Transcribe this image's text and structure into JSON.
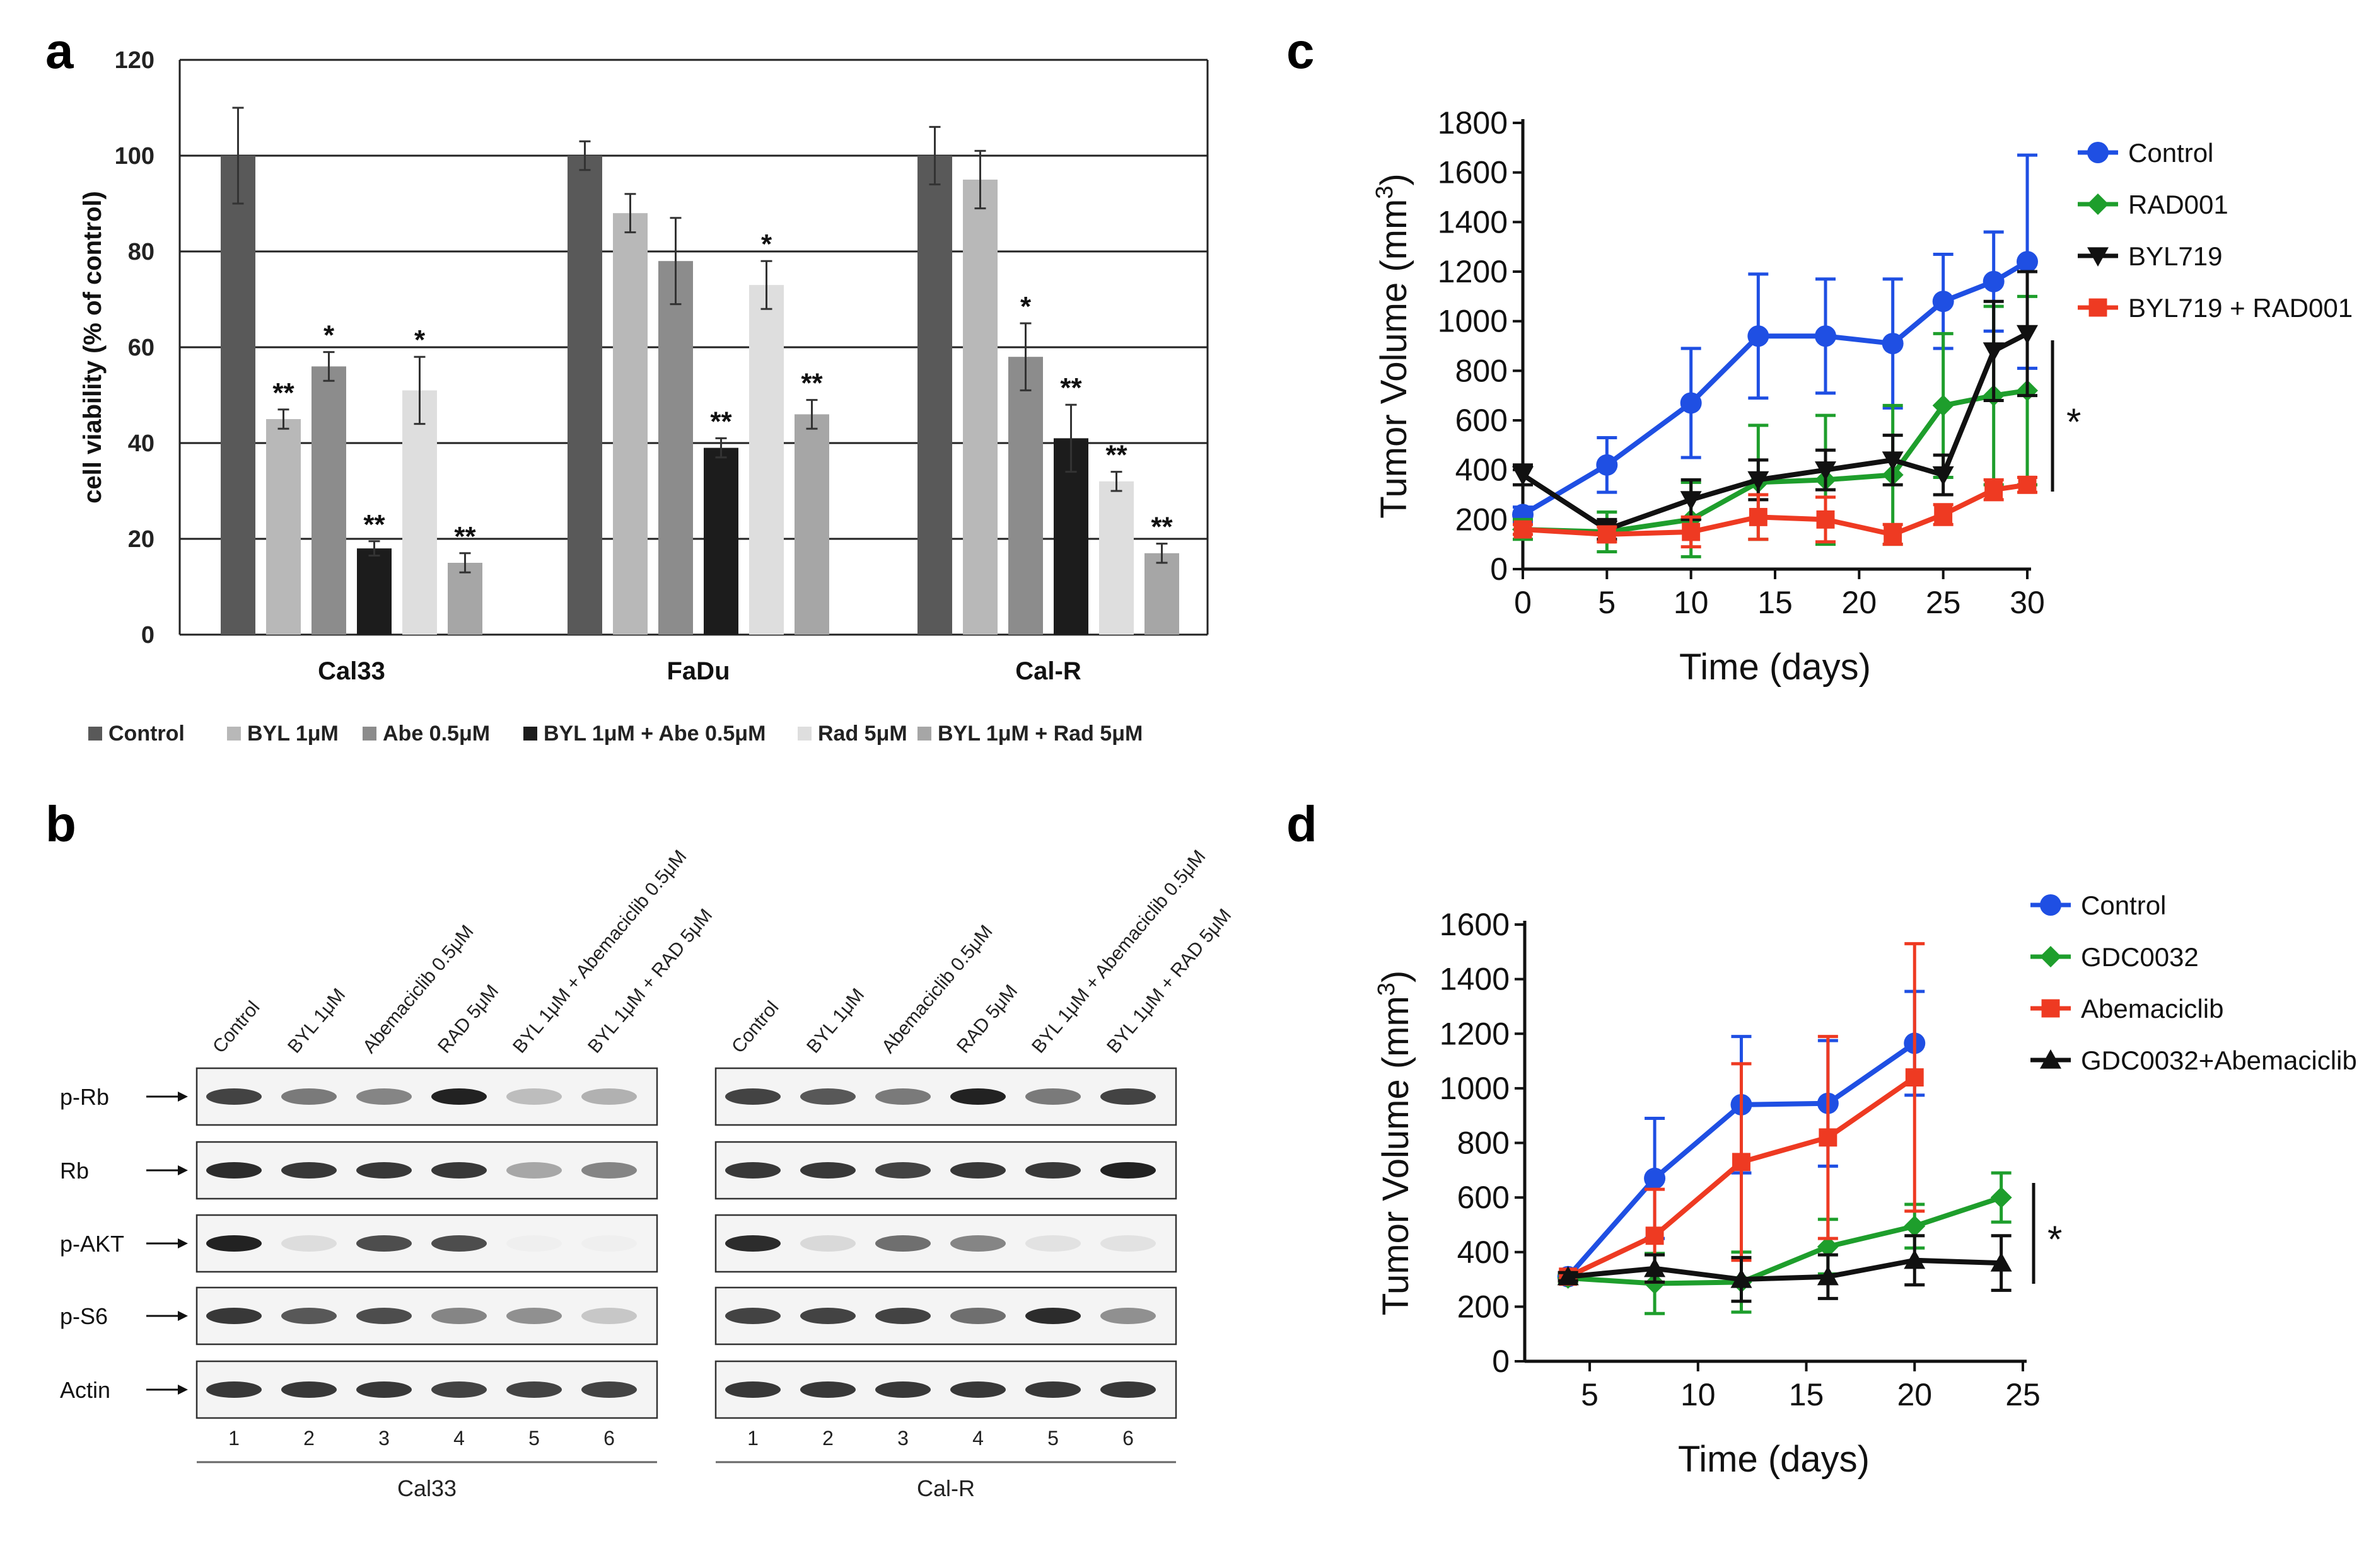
{
  "colors": {
    "control": "#595959",
    "byl": "#b8b8b8",
    "abe": "#8c8c8c",
    "byl_abe": "#1c1c1c",
    "rad": "#dedede",
    "byl_rad": "#a6a6a6",
    "line_blue": "#1f4fe3",
    "line_green": "#1e9e2c",
    "line_black": "#111111",
    "line_red": "#ee3a22"
  },
  "panel_labels": {
    "a": "a",
    "b": "b",
    "c": "c",
    "d": "d"
  },
  "chart_data": [
    {
      "id": "a",
      "type": "bar",
      "title": "",
      "ylabel": "cell viability (% of control)",
      "xlabel": "",
      "ylim": [
        0,
        120
      ],
      "yticks": [
        0,
        20,
        40,
        60,
        80,
        100,
        120
      ],
      "categories": [
        "Cal33",
        "FaDu",
        "Cal-R"
      ],
      "series": [
        {
          "name": "Control",
          "color_key": "control",
          "values": [
            100,
            100,
            100
          ],
          "errors": [
            10,
            3,
            6
          ],
          "stars": [
            "",
            "",
            ""
          ]
        },
        {
          "name": "BYL 1μM",
          "color_key": "byl",
          "values": [
            45,
            88,
            95
          ],
          "errors": [
            2,
            4,
            6
          ],
          "stars": [
            "**",
            "",
            ""
          ]
        },
        {
          "name": "Abe 0.5μM",
          "color_key": "abe",
          "values": [
            56,
            78,
            58
          ],
          "errors": [
            3,
            9,
            7
          ],
          "stars": [
            "*",
            "",
            "*"
          ]
        },
        {
          "name": "BYL 1μM + Abe 0.5μM",
          "color_key": "byl_abe",
          "values": [
            18,
            39,
            41
          ],
          "errors": [
            1.5,
            2,
            7
          ],
          "stars": [
            "**",
            "**",
            "**"
          ]
        },
        {
          "name": "Rad 5μM",
          "color_key": "rad",
          "values": [
            51,
            73,
            32
          ],
          "errors": [
            7,
            5,
            2
          ],
          "stars": [
            "*",
            "*",
            "**"
          ]
        },
        {
          "name": "BYL 1μM + Rad 5μM",
          "color_key": "byl_rad",
          "values": [
            15,
            46,
            17
          ],
          "errors": [
            2,
            3,
            2
          ],
          "stars": [
            "**",
            "**",
            "**"
          ]
        }
      ],
      "grid": true,
      "legend": "bottom"
    },
    {
      "id": "c",
      "type": "line",
      "title": "",
      "xlabel": "Time (days)",
      "ylabel_main": "Tumor Volume (mm",
      "ylabel_sup": "3",
      "ylabel_end": ")",
      "xlim": [
        0,
        30
      ],
      "xticks": [
        0,
        5,
        10,
        15,
        20,
        25,
        30
      ],
      "ylim": [
        0,
        1800
      ],
      "yticks": [
        0,
        200,
        400,
        600,
        800,
        1000,
        1200,
        1400,
        1600,
        1800
      ],
      "series": [
        {
          "name": "Control",
          "marker": "circle",
          "color_key": "line_blue",
          "x": [
            0,
            5,
            10,
            14,
            18,
            22,
            25,
            28,
            30
          ],
          "y": [
            220,
            420,
            670,
            940,
            940,
            910,
            1080,
            1160,
            1240
          ],
          "err": [
            30,
            110,
            220,
            250,
            230,
            260,
            190,
            200,
            430
          ]
        },
        {
          "name": "RAD001",
          "marker": "diamond",
          "color_key": "line_green",
          "x": [
            0,
            5,
            10,
            14,
            18,
            22,
            25,
            28,
            30
          ],
          "y": [
            160,
            150,
            200,
            350,
            360,
            380,
            660,
            700,
            720
          ],
          "err": [
            40,
            80,
            150,
            230,
            260,
            280,
            290,
            360,
            380
          ]
        },
        {
          "name": "BYL719",
          "marker": "triangle-down",
          "color_key": "line_black",
          "x": [
            0,
            5,
            10,
            14,
            18,
            22,
            25,
            28,
            30
          ],
          "y": [
            380,
            160,
            280,
            360,
            400,
            440,
            380,
            880,
            950
          ],
          "err": [
            40,
            40,
            80,
            80,
            80,
            100,
            80,
            200,
            250
          ]
        },
        {
          "name": "BYL719 + RAD001",
          "marker": "square",
          "color_key": "line_red",
          "x": [
            0,
            5,
            10,
            14,
            18,
            22,
            25,
            28,
            30
          ],
          "y": [
            160,
            140,
            150,
            210,
            200,
            140,
            220,
            320,
            340
          ],
          "err": [
            20,
            30,
            60,
            90,
            90,
            40,
            40,
            40,
            30
          ]
        }
      ],
      "significance": "*",
      "legend": "top-right"
    },
    {
      "id": "d",
      "type": "line",
      "title": "",
      "xlabel": "Time (days)",
      "ylabel_main": "Tumor Volume (mm",
      "ylabel_sup": "3",
      "ylabel_end": ")",
      "xlim": [
        2,
        25
      ],
      "xticks": [
        5,
        10,
        15,
        20,
        25
      ],
      "ylim": [
        0,
        1600
      ],
      "yticks": [
        0,
        200,
        400,
        600,
        800,
        1000,
        1200,
        1400,
        1600
      ],
      "series": [
        {
          "name": "Control",
          "marker": "circle",
          "color_key": "line_blue",
          "x": [
            4,
            8,
            12,
            16,
            20
          ],
          "y": [
            310,
            670,
            940,
            945,
            1165
          ],
          "err": [
            15,
            220,
            250,
            230,
            190
          ]
        },
        {
          "name": "GDC0032",
          "marker": "diamond",
          "color_key": "line_green",
          "x": [
            4,
            8,
            12,
            16,
            20,
            24
          ],
          "y": [
            305,
            285,
            290,
            420,
            495,
            600
          ],
          "err": [
            15,
            110,
            110,
            100,
            80,
            90
          ]
        },
        {
          "name": "Abemaciclib",
          "marker": "square",
          "color_key": "line_red",
          "x": [
            4,
            8,
            12,
            16,
            20
          ],
          "y": [
            310,
            460,
            730,
            820,
            1040
          ],
          "err": [
            15,
            170,
            360,
            370,
            490
          ]
        },
        {
          "name": "GDC0032+Abemaciclib",
          "marker": "triangle",
          "color_key": "line_black",
          "x": [
            4,
            8,
            12,
            16,
            20,
            24
          ],
          "y": [
            310,
            340,
            300,
            310,
            370,
            360
          ],
          "err": [
            15,
            50,
            80,
            80,
            90,
            100
          ]
        }
      ],
      "significance": "*",
      "legend": "top-right"
    }
  ],
  "blot": {
    "lane_labels": [
      "Control",
      "BYL 1μM",
      "Abemaciclib 0.5μM",
      "RAD 5μM",
      "BYL 1μM + Abemaciclib 0.5μM",
      "BYL 1μM + RAD 5μM"
    ],
    "lane_numbers": [
      "1",
      "2",
      "3",
      "4",
      "5",
      "6"
    ],
    "row_labels": [
      "p-Rb",
      "Rb",
      "p-AKT",
      "p-S6",
      "Actin"
    ],
    "cell_lines": [
      "Cal33",
      "Cal-R"
    ],
    "intensities": {
      "Cal33": [
        [
          0.8,
          0.55,
          0.5,
          0.95,
          0.25,
          0.3
        ],
        [
          0.9,
          0.85,
          0.85,
          0.85,
          0.35,
          0.5
        ],
        [
          0.95,
          0.1,
          0.75,
          0.75,
          0.02,
          0.02
        ],
        [
          0.85,
          0.7,
          0.75,
          0.5,
          0.45,
          0.2
        ],
        [
          0.85,
          0.85,
          0.85,
          0.8,
          0.8,
          0.8
        ]
      ],
      "Cal-R": [
        [
          0.8,
          0.7,
          0.55,
          0.95,
          0.55,
          0.8
        ],
        [
          0.85,
          0.85,
          0.8,
          0.85,
          0.85,
          0.95
        ],
        [
          0.9,
          0.12,
          0.6,
          0.5,
          0.08,
          0.08
        ],
        [
          0.8,
          0.8,
          0.8,
          0.6,
          0.9,
          0.45
        ],
        [
          0.85,
          0.85,
          0.85,
          0.85,
          0.85,
          0.85
        ]
      ]
    }
  }
}
